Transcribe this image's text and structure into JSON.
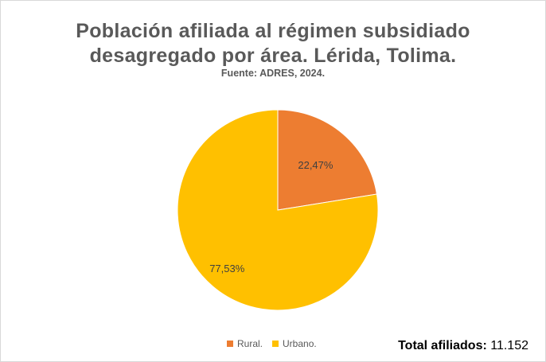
{
  "chart_data": {
    "type": "pie",
    "title_lines": [
      "Población afiliada al régimen subsidiado",
      "desagregado por área. Lérida, Tolima."
    ],
    "subtitle": "Fuente: ADRES, 2024.",
    "slices": [
      {
        "label": "Rural.",
        "value": 22.47,
        "value_label": "22,47%",
        "color": "#ED7D31"
      },
      {
        "label": "Urbano.",
        "value": 77.53,
        "value_label": "77,53%",
        "color": "#FFC000"
      }
    ],
    "legend_position": "bottom"
  },
  "total": {
    "label": "Total afiliados:",
    "value": "11.152"
  }
}
